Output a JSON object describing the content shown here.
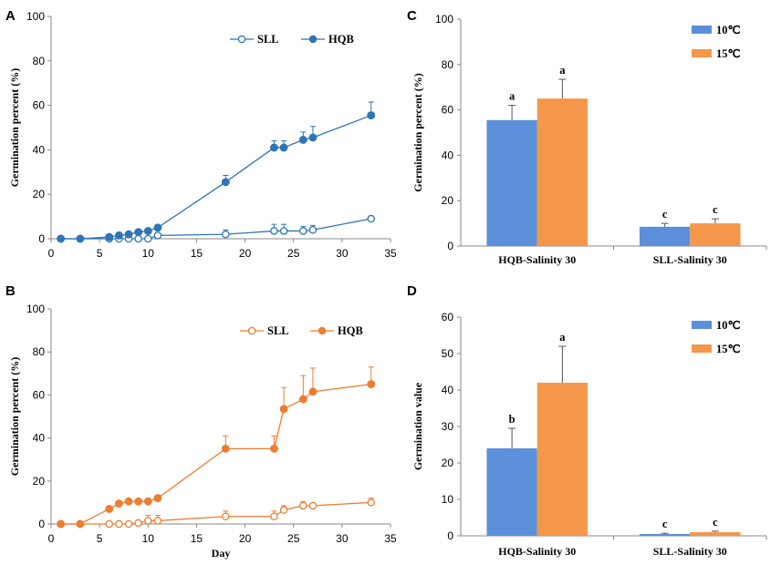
{
  "chart_data": [
    {
      "panel": "A",
      "type": "line",
      "ylabel": "Germination percent (%)",
      "xlabel": "",
      "xlim": [
        0,
        35
      ],
      "ylim": [
        0,
        100
      ],
      "xticks": [
        0,
        5,
        10,
        15,
        20,
        25,
        30,
        35
      ],
      "yticks": [
        0,
        20,
        40,
        60,
        80,
        100
      ],
      "color": "#2E75B6",
      "legend_position": "top-right",
      "series": [
        {
          "name": "SLL",
          "marker": "open-circle",
          "x": [
            1,
            3,
            6,
            7,
            8,
            9,
            10,
            11,
            18,
            23,
            24,
            26,
            27,
            33
          ],
          "y": [
            0,
            0,
            0,
            0,
            0,
            0,
            0,
            1.5,
            2,
            3.5,
            3.5,
            3.5,
            4,
            9
          ],
          "err": [
            0,
            0,
            0,
            0,
            0,
            0,
            0,
            0.5,
            2,
            3,
            3,
            2,
            2,
            1
          ]
        },
        {
          "name": "HQB",
          "marker": "filled-circle",
          "x": [
            1,
            3,
            6,
            7,
            8,
            9,
            10,
            11,
            18,
            23,
            24,
            26,
            27,
            33
          ],
          "y": [
            0,
            0,
            0.8,
            1.5,
            2,
            3,
            3.5,
            5,
            25.5,
            41,
            41,
            44.5,
            45.5,
            55.5
          ],
          "err": [
            0,
            0,
            0.3,
            0.5,
            0.5,
            0.5,
            0.5,
            0.5,
            3,
            3,
            3,
            3.5,
            5,
            6
          ]
        }
      ]
    },
    {
      "panel": "B",
      "type": "line",
      "ylabel": "Germination percent (%)",
      "xlabel": "Day",
      "xlim": [
        0,
        35
      ],
      "ylim": [
        0,
        100
      ],
      "xticks": [
        0,
        5,
        10,
        15,
        20,
        25,
        30,
        35
      ],
      "yticks": [
        0,
        20,
        40,
        60,
        80,
        100
      ],
      "color": "#ED7D31",
      "legend_position": "top-right",
      "series": [
        {
          "name": "SLL",
          "marker": "open-circle",
          "x": [
            1,
            3,
            6,
            7,
            8,
            9,
            10,
            11,
            18,
            23,
            24,
            26,
            27,
            33
          ],
          "y": [
            0,
            0,
            0,
            0,
            0,
            0.5,
            1.5,
            1.5,
            3.5,
            3.5,
            6.5,
            8.5,
            8.5,
            10
          ],
          "err": [
            0,
            0,
            0,
            0,
            0,
            0,
            2.5,
            2.5,
            2.5,
            2.5,
            2,
            2,
            1,
            2
          ]
        },
        {
          "name": "HQB",
          "marker": "filled-circle",
          "x": [
            1,
            3,
            6,
            7,
            8,
            9,
            10,
            11,
            18,
            23,
            24,
            26,
            27,
            33
          ],
          "y": [
            0,
            0,
            7,
            9.5,
            10.5,
            10.5,
            10.5,
            12,
            35,
            35,
            53.5,
            58,
            61.5,
            65
          ],
          "err": [
            0,
            0,
            0,
            0,
            0,
            0,
            0,
            1.5,
            6,
            6,
            10,
            11,
            11,
            8
          ]
        }
      ]
    },
    {
      "panel": "C",
      "type": "bar",
      "ylabel": "Germination percent (%)",
      "xlabel": "",
      "ylim": [
        0,
        100
      ],
      "yticks": [
        0,
        20,
        40,
        60,
        80,
        100
      ],
      "categories": [
        "HQB-Salinity 30",
        "SLL-Salinity 30"
      ],
      "legend_position": "top-right",
      "series": [
        {
          "name": "10℃",
          "color": "#5B8FD9",
          "values": [
            55.5,
            8.5
          ],
          "err": [
            6.5,
            1.5
          ],
          "labels": [
            "a",
            "c"
          ]
        },
        {
          "name": "15℃",
          "color": "#F4974A",
          "values": [
            65,
            10
          ],
          "err": [
            8.5,
            2
          ],
          "labels": [
            "a",
            "c"
          ]
        }
      ]
    },
    {
      "panel": "D",
      "type": "bar",
      "ylabel": "Germination value",
      "xlabel": "",
      "ylim": [
        0,
        60
      ],
      "yticks": [
        0,
        10,
        20,
        30,
        40,
        50,
        60
      ],
      "categories": [
        "HQB-Salinity 30",
        "SLL-Salinity 30"
      ],
      "legend_position": "top-right",
      "series": [
        {
          "name": "10℃",
          "color": "#5B8FD9",
          "values": [
            24,
            0.5
          ],
          "err": [
            5.5,
            0.2
          ],
          "labels": [
            "b",
            "c"
          ]
        },
        {
          "name": "15℃",
          "color": "#F4974A",
          "values": [
            42,
            1
          ],
          "err": [
            10,
            0.3
          ],
          "labels": [
            "a",
            "c"
          ]
        }
      ]
    }
  ]
}
